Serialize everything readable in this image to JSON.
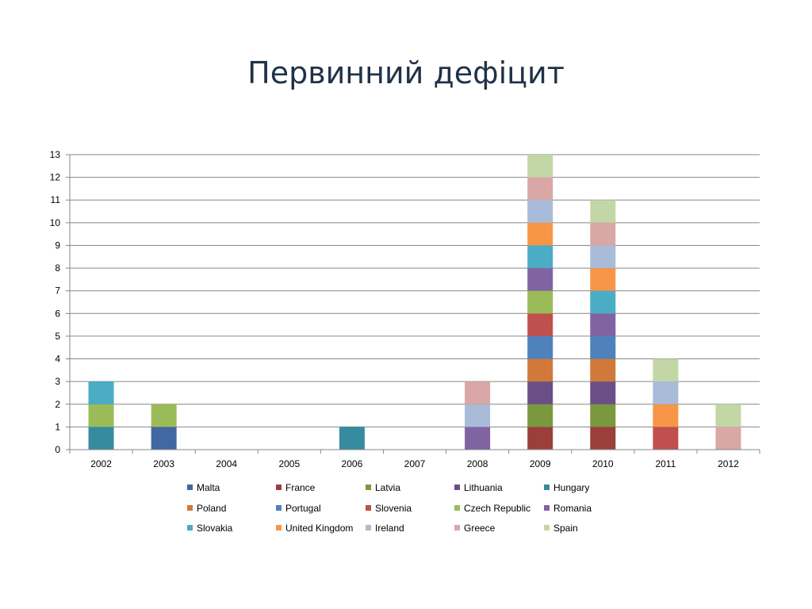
{
  "slide": {
    "title": "Первинний дефіцит"
  },
  "chart_data": {
    "type": "bar",
    "stacked": true,
    "title": "",
    "xlabel": "",
    "ylabel": "",
    "ylim": [
      0,
      13
    ],
    "grid": true,
    "legend_position": "bottom",
    "categories": [
      "2002",
      "2003",
      "2004",
      "2005",
      "2006",
      "2007",
      "2008",
      "2009",
      "2010",
      "2011",
      "2012"
    ],
    "series": [
      {
        "name": "Malta",
        "color": "#4168a0",
        "values": [
          0,
          1,
          0,
          0,
          0,
          0,
          0,
          0,
          0,
          0,
          0
        ]
      },
      {
        "name": "France",
        "color": "#9b3f3b",
        "values": [
          0,
          0,
          0,
          0,
          0,
          0,
          0,
          1,
          1,
          0,
          0
        ]
      },
      {
        "name": "Latvia",
        "color": "#7a983d",
        "values": [
          0,
          0,
          0,
          0,
          0,
          0,
          0,
          1,
          1,
          0,
          0
        ]
      },
      {
        "name": "Lithuania",
        "color": "#6a4f87",
        "values": [
          0,
          0,
          0,
          0,
          0,
          0,
          0,
          1,
          1,
          0,
          0
        ]
      },
      {
        "name": "Hungary",
        "color": "#378ba0",
        "values": [
          1,
          0,
          0,
          0,
          1,
          0,
          0,
          0,
          0,
          0,
          0
        ]
      },
      {
        "name": "Poland",
        "color": "#d1793a",
        "values": [
          0,
          0,
          0,
          0,
          0,
          0,
          0,
          1,
          1,
          0,
          0
        ]
      },
      {
        "name": "Portugal",
        "color": "#4f81bd",
        "values": [
          0,
          0,
          0,
          0,
          0,
          0,
          0,
          1,
          1,
          0,
          0
        ]
      },
      {
        "name": "Slovenia",
        "color": "#c0504d",
        "values": [
          0,
          0,
          0,
          0,
          0,
          0,
          0,
          1,
          0,
          1,
          0
        ]
      },
      {
        "name": "Czech Republic",
        "color": "#9bbb59",
        "values": [
          1,
          1,
          0,
          0,
          0,
          0,
          0,
          1,
          0,
          0,
          0
        ]
      },
      {
        "name": "Romania",
        "color": "#8064a2",
        "values": [
          0,
          0,
          0,
          0,
          0,
          0,
          1,
          1,
          1,
          0,
          0
        ]
      },
      {
        "name": "Slovakia",
        "color": "#4bacc6",
        "values": [
          1,
          0,
          0,
          0,
          0,
          0,
          0,
          1,
          1,
          0,
          0
        ]
      },
      {
        "name": "United Kingdom",
        "color": "#f79646",
        "values": [
          0,
          0,
          0,
          0,
          0,
          0,
          0,
          1,
          1,
          1,
          0
        ]
      },
      {
        "name": "Ireland",
        "color": "#aabbd9",
        "values": [
          0,
          0,
          0,
          0,
          0,
          0,
          1,
          1,
          1,
          1,
          0
        ]
      },
      {
        "name": "Greece",
        "color": "#d9a7a6",
        "values": [
          0,
          0,
          0,
          0,
          0,
          0,
          1,
          1,
          1,
          0,
          1
        ]
      },
      {
        "name": "Spain",
        "color": "#c3d6a6",
        "values": [
          0,
          0,
          0,
          0,
          0,
          0,
          0,
          1,
          1,
          1,
          1
        ]
      }
    ]
  }
}
